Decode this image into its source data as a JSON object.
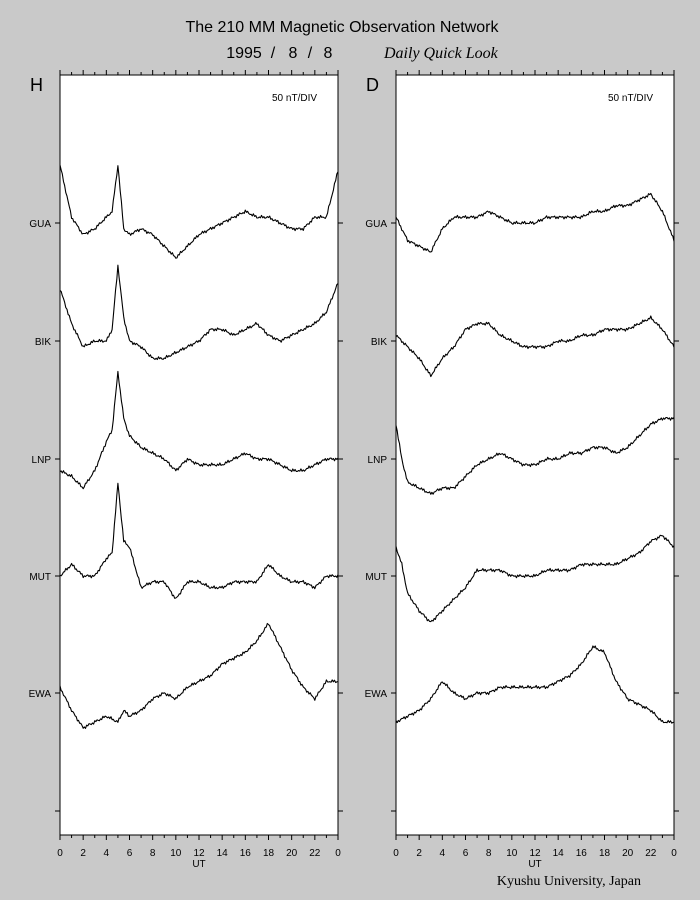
{
  "header": {
    "title": "The 210 MM Magnetic Observation Network",
    "date_parts": [
      "1995",
      "/",
      "8",
      "/",
      "8"
    ],
    "subtitle": "Daily Quick Look"
  },
  "footer": {
    "credit": "Kyushu University, Japan"
  },
  "colors": {
    "background": "#c9c9c9",
    "plot_area": "#ffffff",
    "ink": "#000000"
  },
  "chart_data": [
    {
      "type": "line",
      "panel_label": "H",
      "scale_label": "50 nT/DIV",
      "xlabel": "UT",
      "x_ticks": [
        "0",
        "2",
        "4",
        "6",
        "8",
        "10",
        "12",
        "14",
        "16",
        "18",
        "20",
        "22",
        "0"
      ],
      "xlim": [
        0,
        24
      ],
      "stations": [
        "GUA",
        "BIK",
        "LNP",
        "MUT",
        "EWA"
      ],
      "y_unit_per_division": 50,
      "series": [
        {
          "name": "GUA",
          "x": [
            0,
            1,
            2,
            3,
            4,
            4.5,
            5,
            5.5,
            6,
            7,
            8,
            9,
            10,
            11,
            12,
            13,
            14,
            15,
            16,
            17,
            18,
            19,
            20,
            21,
            22,
            23,
            24
          ],
          "values": [
            -1.0,
            -0.1,
            0.2,
            0.1,
            -0.1,
            -0.2,
            -1.0,
            0.1,
            0.2,
            0.1,
            0.2,
            0.4,
            0.6,
            0.4,
            0.2,
            0.1,
            0.0,
            -0.1,
            -0.2,
            -0.1,
            -0.1,
            0.0,
            0.1,
            0.1,
            -0.1,
            -0.1,
            -0.9
          ]
        },
        {
          "name": "BIK",
          "x": [
            0,
            1,
            2,
            3,
            4,
            4.5,
            5,
            5.5,
            6,
            7,
            8,
            9,
            10,
            11,
            12,
            13,
            14,
            15,
            16,
            17,
            18,
            19,
            20,
            21,
            22,
            23,
            24
          ],
          "values": [
            -0.9,
            -0.3,
            0.1,
            0.0,
            0.0,
            -0.2,
            -1.3,
            -0.4,
            0.0,
            0.1,
            0.3,
            0.3,
            0.2,
            0.1,
            0.0,
            -0.2,
            -0.2,
            -0.1,
            -0.2,
            -0.3,
            -0.1,
            0.0,
            -0.1,
            -0.2,
            -0.3,
            -0.5,
            -1.0
          ]
        },
        {
          "name": "LNP",
          "x": [
            0,
            1,
            2,
            3,
            4,
            4.5,
            5,
            5.5,
            6,
            7,
            8,
            9,
            10,
            11,
            12,
            13,
            14,
            15,
            16,
            17,
            18,
            19,
            20,
            21,
            22,
            23,
            24
          ],
          "values": [
            0.2,
            0.3,
            0.5,
            0.2,
            -0.3,
            -0.5,
            -1.5,
            -0.7,
            -0.4,
            -0.2,
            -0.1,
            0.0,
            0.2,
            0.0,
            0.1,
            0.1,
            0.1,
            0.0,
            -0.1,
            0.0,
            0.0,
            0.1,
            0.2,
            0.2,
            0.1,
            0.0,
            0.0
          ]
        },
        {
          "name": "MUT",
          "x": [
            0,
            1,
            2,
            3,
            4,
            4.5,
            5,
            5.5,
            6,
            7,
            8,
            9,
            10,
            11,
            12,
            13,
            14,
            15,
            16,
            17,
            18,
            19,
            20,
            21,
            22,
            23,
            24
          ],
          "values": [
            0.0,
            -0.2,
            0.0,
            0.0,
            -0.3,
            -0.4,
            -1.6,
            -0.6,
            -0.5,
            0.2,
            0.1,
            0.1,
            0.4,
            0.1,
            0.1,
            0.2,
            0.2,
            0.1,
            0.1,
            0.1,
            -0.2,
            0.0,
            0.1,
            0.1,
            0.2,
            0.0,
            0.0
          ]
        },
        {
          "name": "EWA",
          "x": [
            0,
            1,
            2,
            3,
            4,
            5,
            5.5,
            6,
            7,
            8,
            9,
            10,
            11,
            12,
            13,
            14,
            15,
            16,
            17,
            18,
            19,
            20,
            21,
            22,
            23,
            24
          ],
          "values": [
            -0.1,
            0.3,
            0.6,
            0.5,
            0.4,
            0.5,
            0.3,
            0.4,
            0.3,
            0.1,
            0.0,
            0.1,
            -0.1,
            -0.2,
            -0.3,
            -0.5,
            -0.6,
            -0.7,
            -0.9,
            -1.2,
            -0.8,
            -0.4,
            -0.1,
            0.1,
            -0.2,
            -0.2
          ]
        }
      ]
    },
    {
      "type": "line",
      "panel_label": "D",
      "scale_label": "50 nT/DIV",
      "xlabel": "UT",
      "x_ticks": [
        "0",
        "2",
        "4",
        "6",
        "8",
        "10",
        "12",
        "14",
        "16",
        "18",
        "20",
        "22",
        "0"
      ],
      "xlim": [
        0,
        24
      ],
      "stations": [
        "GUA",
        "BIK",
        "LNP",
        "MUT",
        "EWA"
      ],
      "y_unit_per_division": 50,
      "series": [
        {
          "name": "GUA",
          "x": [
            0,
            1,
            2,
            3,
            4,
            5,
            6,
            7,
            8,
            9,
            10,
            11,
            12,
            13,
            14,
            15,
            16,
            17,
            18,
            19,
            20,
            21,
            22,
            23,
            24
          ],
          "values": [
            -0.1,
            0.3,
            0.4,
            0.5,
            0.1,
            -0.1,
            -0.1,
            -0.1,
            -0.2,
            -0.1,
            0.0,
            0.0,
            0.0,
            -0.1,
            -0.1,
            -0.1,
            -0.1,
            -0.2,
            -0.2,
            -0.3,
            -0.3,
            -0.4,
            -0.5,
            -0.2,
            0.3
          ]
        },
        {
          "name": "BIK",
          "x": [
            0,
            1,
            2,
            3,
            4,
            5,
            6,
            7,
            8,
            9,
            10,
            11,
            12,
            13,
            14,
            15,
            16,
            17,
            18,
            19,
            20,
            21,
            22,
            23,
            24
          ],
          "values": [
            -0.1,
            0.1,
            0.3,
            0.6,
            0.3,
            0.1,
            -0.2,
            -0.3,
            -0.3,
            -0.1,
            0.0,
            0.1,
            0.1,
            0.1,
            0.0,
            0.0,
            -0.1,
            -0.1,
            -0.2,
            -0.2,
            -0.2,
            -0.3,
            -0.4,
            -0.2,
            0.1
          ]
        },
        {
          "name": "LNP",
          "x": [
            0,
            0.5,
            1,
            2,
            3,
            4,
            5,
            6,
            7,
            8,
            9,
            10,
            11,
            12,
            13,
            14,
            15,
            16,
            17,
            18,
            19,
            20,
            21,
            22,
            23,
            24
          ],
          "values": [
            -0.6,
            0.0,
            0.4,
            0.5,
            0.6,
            0.5,
            0.5,
            0.3,
            0.1,
            0.0,
            -0.1,
            0.0,
            0.1,
            0.1,
            0.0,
            0.0,
            -0.1,
            -0.1,
            -0.2,
            -0.2,
            -0.1,
            -0.2,
            -0.4,
            -0.6,
            -0.7,
            -0.7
          ]
        },
        {
          "name": "MUT",
          "x": [
            0,
            0.5,
            1,
            2,
            3,
            4,
            5,
            6,
            7,
            8,
            9,
            10,
            11,
            12,
            13,
            14,
            15,
            16,
            17,
            18,
            19,
            20,
            21,
            22,
            23,
            24
          ],
          "values": [
            -0.5,
            -0.2,
            0.3,
            0.6,
            0.8,
            0.6,
            0.4,
            0.2,
            -0.1,
            -0.1,
            -0.1,
            0.0,
            0.0,
            0.0,
            -0.1,
            -0.1,
            -0.1,
            -0.2,
            -0.2,
            -0.2,
            -0.2,
            -0.3,
            -0.4,
            -0.6,
            -0.7,
            -0.5
          ]
        },
        {
          "name": "EWA",
          "x": [
            0,
            1,
            2,
            3,
            4,
            5,
            6,
            7,
            8,
            9,
            10,
            11,
            12,
            13,
            14,
            15,
            16,
            17,
            18,
            19,
            20,
            21,
            22,
            23,
            24
          ],
          "values": [
            0.5,
            0.4,
            0.3,
            0.1,
            -0.2,
            0.0,
            0.1,
            0.0,
            0.0,
            -0.1,
            -0.1,
            -0.1,
            -0.1,
            -0.1,
            -0.2,
            -0.3,
            -0.5,
            -0.8,
            -0.7,
            -0.2,
            0.1,
            0.2,
            0.3,
            0.5,
            0.5
          ]
        }
      ]
    }
  ]
}
